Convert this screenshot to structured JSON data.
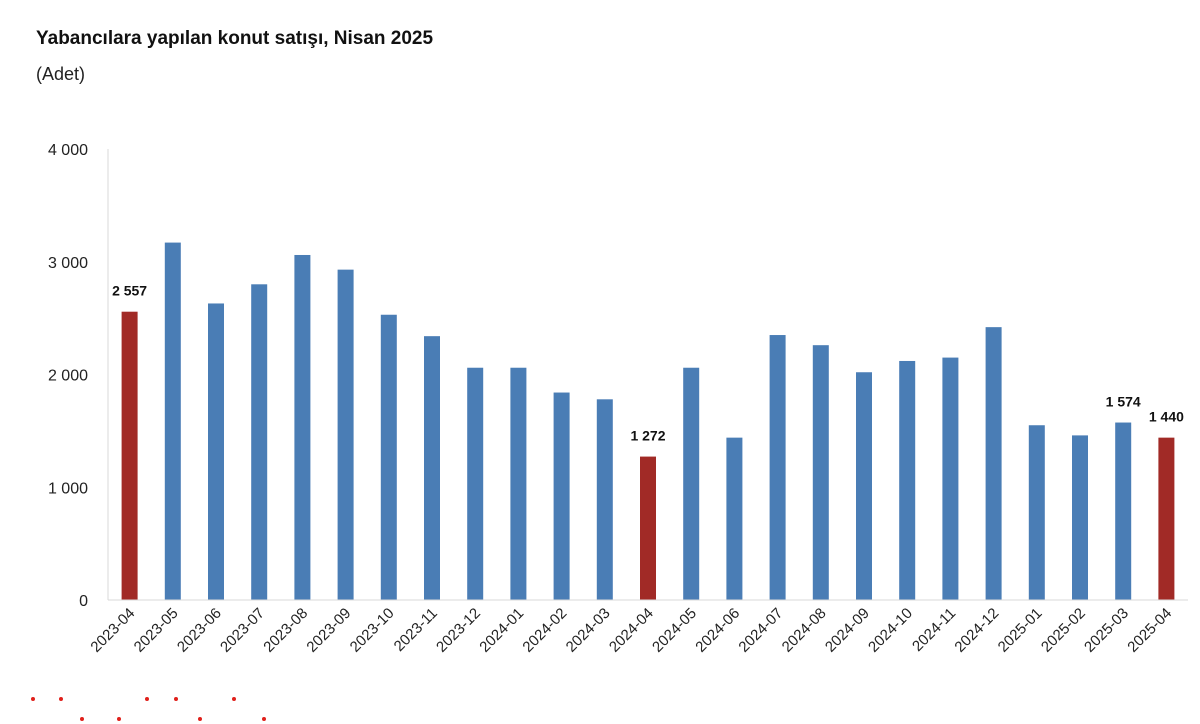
{
  "header": {
    "title": "Yabancılara yapılan konut satışı, Nisan 2025",
    "unit": "(Adet)"
  },
  "chart_data": {
    "type": "bar",
    "title": "Yabancılara yapılan konut satışı, Nisan 2025",
    "subtitle": "(Adet)",
    "xlabel": "",
    "ylabel": "",
    "ylim": [
      0,
      4000
    ],
    "yticks": [
      0,
      1000,
      2000,
      3000,
      4000
    ],
    "ytick_labels": [
      "0",
      "1 000",
      "2 000",
      "3 000",
      "4 000"
    ],
    "grid": false,
    "categories": [
      "2023-04",
      "2023-05",
      "2023-06",
      "2023-07",
      "2023-08",
      "2023-09",
      "2023-10",
      "2023-11",
      "2023-12",
      "2024-01",
      "2024-02",
      "2024-03",
      "2024-04",
      "2024-05",
      "2024-06",
      "2024-07",
      "2024-08",
      "2024-09",
      "2024-10",
      "2024-11",
      "2024-12",
      "2025-01",
      "2025-02",
      "2025-03",
      "2025-04"
    ],
    "values": [
      2557,
      3170,
      2630,
      2800,
      3060,
      2930,
      2530,
      2340,
      2060,
      2060,
      1840,
      1780,
      1272,
      2060,
      1440,
      2350,
      2260,
      2020,
      2120,
      2150,
      2420,
      1550,
      1460,
      1574,
      1440
    ],
    "highlight": [
      true,
      false,
      false,
      false,
      false,
      false,
      false,
      false,
      false,
      false,
      false,
      false,
      true,
      false,
      false,
      false,
      false,
      false,
      false,
      false,
      false,
      false,
      false,
      false,
      true
    ],
    "data_labels": [
      "2 557",
      "",
      "",
      "",
      "",
      "",
      "",
      "",
      "",
      "",
      "",
      "",
      "1 272",
      "",
      "",
      "",
      "",
      "",
      "",
      "",
      "",
      "",
      "",
      "1 574",
      "1 440"
    ],
    "colors": {
      "default": "#4a7db5",
      "highlight": "#a12a26"
    }
  }
}
